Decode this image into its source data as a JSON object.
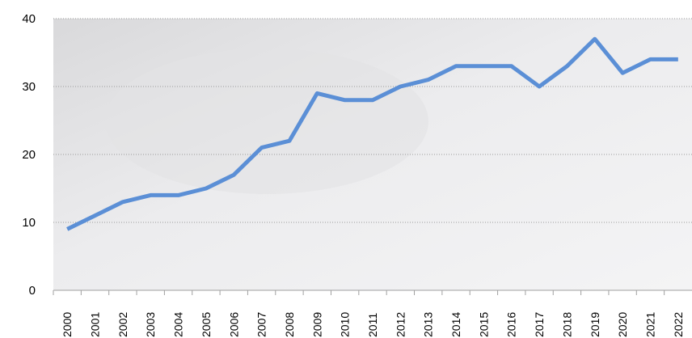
{
  "chart_data": {
    "type": "line",
    "categories": [
      "2000",
      "2001",
      "2002",
      "2003",
      "2004",
      "2005",
      "2006",
      "2007",
      "2008",
      "2009",
      "2010",
      "2011",
      "2012",
      "2013",
      "2014",
      "2015",
      "2016",
      "2017",
      "2018",
      "2019",
      "2020",
      "2021",
      "2022"
    ],
    "series": [
      {
        "color": "#5b8fd6",
        "values": [
          9,
          11,
          13,
          14,
          14,
          15,
          17,
          21,
          22,
          29,
          28,
          28,
          30,
          31,
          33,
          33,
          33,
          30,
          33,
          37,
          32,
          34,
          34
        ]
      }
    ],
    "ylim": [
      0,
      40
    ],
    "yticks": [
      0,
      10,
      20,
      30,
      40
    ],
    "grid": true
  }
}
